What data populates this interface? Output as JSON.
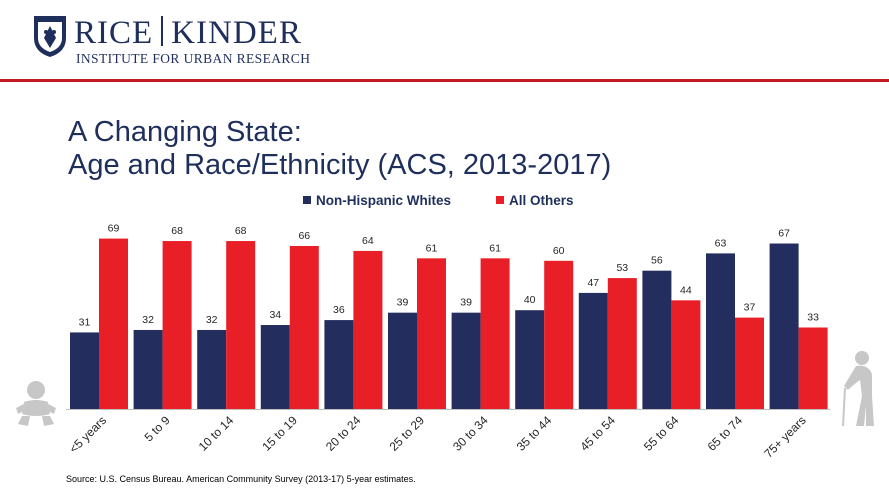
{
  "header": {
    "brand_left": "RICE",
    "brand_right": "KINDER",
    "tagline": "INSTITUTE FOR URBAN RESEARCH"
  },
  "title_line1": "A Changing State:",
  "title_line2": "Age and Race/Ethnicity (ACS, 2013-2017)",
  "source": "Source: U.S. Census Bureau. American Community Survey (2013-17) 5-year estimates.",
  "icons": {
    "left": "baby-icon",
    "right": "elderly-person-icon"
  },
  "colors": {
    "navy": "#242e5e",
    "red": "#e81f27",
    "brand": "#1f2f5c",
    "rule": "#c0191f",
    "icon": "#c7c7c7"
  },
  "chart_data": {
    "type": "bar",
    "categories": [
      "<5 years",
      "5 to 9",
      "10 to 14",
      "15 to 19",
      "20 to 24",
      "25 to 29",
      "30 to 34",
      "35 to 44",
      "45 to 54",
      "55 to 64",
      "65 to 74",
      "75+  years"
    ],
    "series": [
      {
        "name": "Non-Hispanic Whites",
        "color": "#242e5e",
        "values": [
          31,
          32,
          32,
          34,
          36,
          39,
          39,
          40,
          47,
          56,
          63,
          67
        ]
      },
      {
        "name": "All Others",
        "color": "#e81f27",
        "values": [
          69,
          68,
          68,
          66,
          64,
          61,
          61,
          60,
          53,
          44,
          37,
          33
        ]
      }
    ],
    "ylim": [
      0,
      80
    ],
    "grid": false,
    "legend_position": "top-center",
    "data_labels": true
  }
}
